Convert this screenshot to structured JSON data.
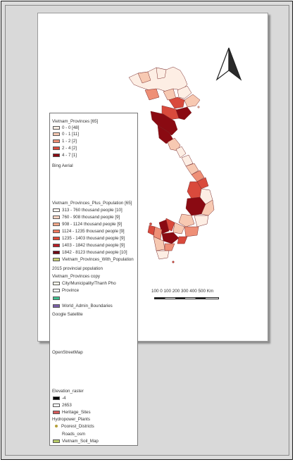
{
  "legend": {
    "provinces": {
      "title": "Vietnam_Provinces [65]",
      "classes": [
        {
          "label": "0 - 0 [48]",
          "color": "#fdeee4"
        },
        {
          "label": "0 - 1 [11]",
          "color": "#f7c9b2"
        },
        {
          "label": "1 - 2 [2]",
          "color": "#ee8f76"
        },
        {
          "label": "2 - 4 [2]",
          "color": "#d94a3c"
        },
        {
          "label": "4 - 7 [1]",
          "color": "#8a0a12"
        }
      ]
    },
    "bing": "Bing Aerial",
    "population": {
      "title": "Vietnam_Provinces_Plus_Population [65]",
      "classes": [
        {
          "label": "313 - 760 thousand people [10]",
          "color": "#fff5f0"
        },
        {
          "label": "760 - 908 thousand people [9]",
          "color": "#fcd5c3"
        },
        {
          "label": "908 - 1124 thousand people [9]",
          "color": "#f9a98a"
        },
        {
          "label": "1124 - 1235 thousand people [9]",
          "color": "#f27a60"
        },
        {
          "label": "1235 - 1403 thousand people [9]",
          "color": "#e04837"
        },
        {
          "label": "1403 - 1842 thousand people [9]",
          "color": "#b91c24"
        },
        {
          "label": "1842 - 8123 thousand people [10]",
          "color": "#720713"
        }
      ]
    },
    "with_population": {
      "label": "Vietnam_Provinces_With_Population",
      "color": "#c8cf76"
    },
    "population_2015": "2015 provincial population",
    "provinces_copy": {
      "title": "Vietnam_Provinces copy",
      "items": [
        {
          "label": "City/Municipality/Thanh Pho",
          "color": "#fbfbe8"
        },
        {
          "label": "Province",
          "color": "#ffffff"
        }
      ]
    },
    "teal_swatch": {
      "label": "",
      "color": "#3fbf8f"
    },
    "world_admin": {
      "label": "World_Admin_Boundaries",
      "color": "#7b5fa8"
    },
    "google": "Google Satellite",
    "osm": "OpenStreetMap",
    "elevation": {
      "title": "Elevation_raster",
      "items": [
        {
          "label": "-4",
          "color": "#000000"
        },
        {
          "label": "2653",
          "color": "#ffffff"
        }
      ]
    },
    "heritage": {
      "label": "Heritage_Sites",
      "color": "#d65a5a"
    },
    "hydropower": "Hydropower_Plants",
    "poorest": {
      "label": "Poorest_Districts",
      "color": "#b5a03b"
    },
    "roads": "Roads_osm",
    "soil": {
      "label": "Vietnam_Soil_Map",
      "color": "#b9cc6a"
    }
  },
  "scale": {
    "labels": "100  0  100 200 300 400 500 Km"
  },
  "map": {
    "north_arrow": "north-arrow",
    "colors": {
      "dark": "#8a0a12",
      "mid": "#d94a3c",
      "light": "#f7c9b2",
      "pale": "#fdeee4",
      "stroke": "#7a2a2a"
    }
  }
}
